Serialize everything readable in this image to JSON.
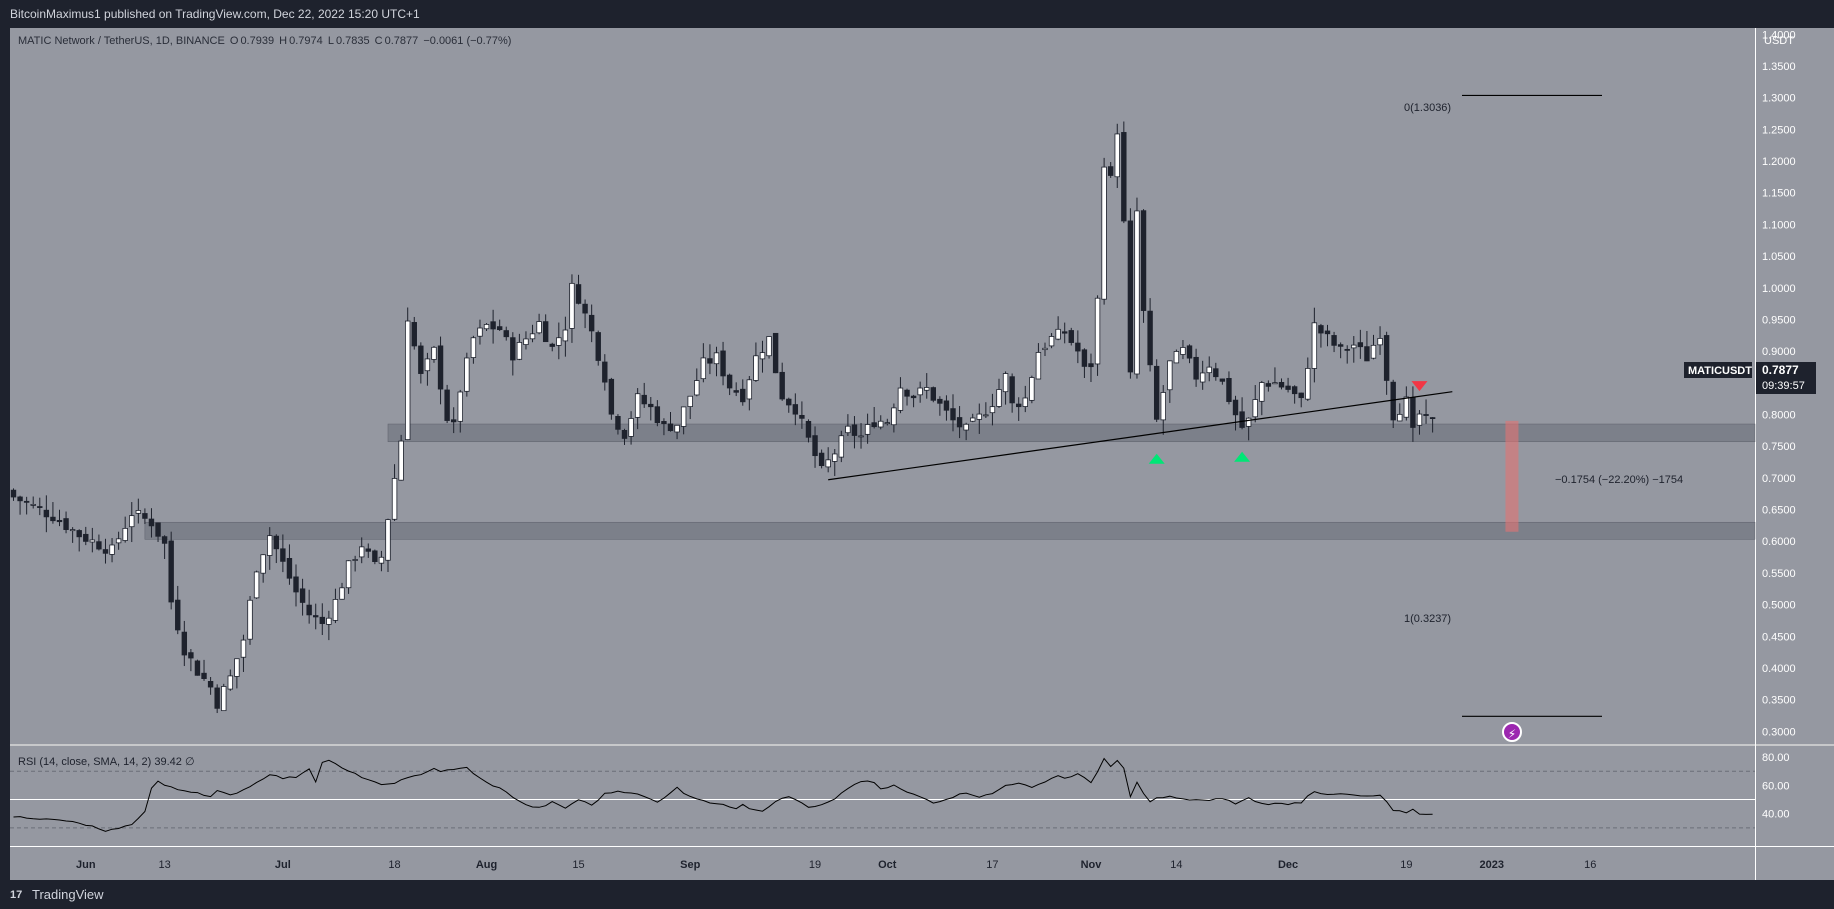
{
  "header": {
    "publisher": "BitcoinMaximus1 published on TradingView.com, Dec 22, 2022 15:20 UTC+1"
  },
  "footer": {
    "brand": "TradingView",
    "logo_glyph": "17"
  },
  "legend": {
    "symbol": "MATIC Network / TetherUS, 1D, BINANCE",
    "open_label": "O",
    "open": "0.7939",
    "high_label": "H",
    "high": "0.7974",
    "low_label": "L",
    "low": "0.7835",
    "close_label": "C",
    "close": "0.7877",
    "change": "−0.0061 (−0.77%)"
  },
  "rsi_legend": {
    "text": "RSI (14, close, SMA, 14, 2)",
    "value": "39.42",
    "glyph": "∅"
  },
  "price_badge": {
    "symbol": "MATICUSDT",
    "price": "0.7877",
    "countdown": "09:39:57"
  },
  "annotations": {
    "fib_top": "0(1.3036)",
    "fib_bottom": "1(0.3237)",
    "measure": "−0.1754 (−22.20%) −1754",
    "lightning_glyph": "⚡"
  },
  "colors": {
    "background_main": "#9598a1",
    "frame": "#1e222d",
    "bull_fill": "#ffffff",
    "bear_fill": "#1e222d",
    "support_zone": "#787b86",
    "up_arrow": "#00e676",
    "down_arrow": "#f23645",
    "measure_box": "#e57373"
  },
  "chart_data": {
    "type": "candlestick",
    "title": "MATIC Network / TetherUS, 1D, BINANCE",
    "ylabel": "USDT",
    "ylim": [
      0.28,
      1.41
    ],
    "y_ticks": [
      "1.4000",
      "1.3500",
      "1.3000",
      "1.2500",
      "1.2000",
      "1.1500",
      "1.1000",
      "1.0500",
      "1.0000",
      "0.9500",
      "0.9000",
      "0.8500",
      "0.8000",
      "0.7500",
      "0.7000",
      "0.6500",
      "0.6000",
      "0.5500",
      "0.5000",
      "0.4500",
      "0.4000",
      "0.3500",
      "0.3000"
    ],
    "x_ticks": [
      {
        "label": "Jun",
        "day": 11
      },
      {
        "label": "13",
        "day": 23
      },
      {
        "label": "Jul",
        "day": 41
      },
      {
        "label": "18",
        "day": 58
      },
      {
        "label": "Aug",
        "day": 72
      },
      {
        "label": "15",
        "day": 86
      },
      {
        "label": "Sep",
        "day": 103
      },
      {
        "label": "19",
        "day": 122
      },
      {
        "label": "Oct",
        "day": 133
      },
      {
        "label": "17",
        "day": 149
      },
      {
        "label": "Nov",
        "day": 164
      },
      {
        "label": "14",
        "day": 177
      },
      {
        "label": "Dec",
        "day": 194
      },
      {
        "label": "19",
        "day": 212
      },
      {
        "label": "2023",
        "day": 225
      },
      {
        "label": "16",
        "day": 240
      }
    ],
    "support_zones": [
      [
        0.757,
        0.785
      ],
      [
        0.603,
        0.63
      ]
    ],
    "trendline": {
      "from_day": 124,
      "from_price": 0.697,
      "to_day": 219,
      "to_price": 0.836
    },
    "fib_levels": [
      {
        "label": "0(1.3036)",
        "price": 1.3036
      },
      {
        "label": "1(0.3237)",
        "price": 0.3237
      }
    ],
    "up_markers": [
      {
        "day": 174,
        "price": 0.735
      },
      {
        "day": 187,
        "price": 0.738
      }
    ],
    "down_markers": [
      {
        "day": 214,
        "price": 0.84
      }
    ],
    "measure": {
      "day": 228,
      "from": 0.79,
      "to": 0.615
    },
    "close_anchors": [
      [
        0,
        0.67
      ],
      [
        6,
        0.64
      ],
      [
        10,
        0.61
      ],
      [
        15,
        0.585
      ],
      [
        18,
        0.645
      ],
      [
        21,
        0.63
      ],
      [
        23,
        0.595
      ],
      [
        24,
        0.505
      ],
      [
        26,
        0.43
      ],
      [
        28,
        0.395
      ],
      [
        30,
        0.37
      ],
      [
        31,
        0.345
      ],
      [
        33,
        0.385
      ],
      [
        35,
        0.445
      ],
      [
        37,
        0.56
      ],
      [
        39,
        0.61
      ],
      [
        41,
        0.565
      ],
      [
        43,
        0.52
      ],
      [
        45,
        0.485
      ],
      [
        47,
        0.47
      ],
      [
        49,
        0.505
      ],
      [
        51,
        0.56
      ],
      [
        53,
        0.595
      ],
      [
        55,
        0.56
      ],
      [
        56,
        0.575
      ],
      [
        58,
        0.7
      ],
      [
        59,
        0.76
      ],
      [
        60,
        0.955
      ],
      [
        62,
        0.86
      ],
      [
        64,
        0.9
      ],
      [
        66,
        0.795
      ],
      [
        67,
        0.78
      ],
      [
        68,
        0.84
      ],
      [
        70,
        0.92
      ],
      [
        72,
        0.94
      ],
      [
        74,
        0.935
      ],
      [
        76,
        0.895
      ],
      [
        78,
        0.92
      ],
      [
        80,
        0.945
      ],
      [
        82,
        0.905
      ],
      [
        84,
        0.94
      ],
      [
        85,
        1.0
      ],
      [
        86,
        0.985
      ],
      [
        88,
        0.93
      ],
      [
        90,
        0.86
      ],
      [
        91,
        0.8
      ],
      [
        93,
        0.77
      ],
      [
        95,
        0.825
      ],
      [
        97,
        0.81
      ],
      [
        99,
        0.78
      ],
      [
        101,
        0.785
      ],
      [
        103,
        0.83
      ],
      [
        105,
        0.88
      ],
      [
        107,
        0.89
      ],
      [
        109,
        0.845
      ],
      [
        111,
        0.83
      ],
      [
        113,
        0.89
      ],
      [
        115,
        0.92
      ],
      [
        116,
        0.87
      ],
      [
        117,
        0.83
      ],
      [
        119,
        0.81
      ],
      [
        121,
        0.76
      ],
      [
        123,
        0.71
      ],
      [
        125,
        0.74
      ],
      [
        127,
        0.775
      ],
      [
        129,
        0.765
      ],
      [
        131,
        0.79
      ],
      [
        133,
        0.79
      ],
      [
        135,
        0.845
      ],
      [
        137,
        0.83
      ],
      [
        139,
        0.84
      ],
      [
        141,
        0.815
      ],
      [
        143,
        0.79
      ],
      [
        145,
        0.775
      ],
      [
        147,
        0.795
      ],
      [
        149,
        0.82
      ],
      [
        151,
        0.86
      ],
      [
        152,
        0.815
      ],
      [
        154,
        0.825
      ],
      [
        156,
        0.9
      ],
      [
        158,
        0.92
      ],
      [
        160,
        0.93
      ],
      [
        162,
        0.9
      ],
      [
        163,
        0.87
      ],
      [
        164,
        0.88
      ],
      [
        165,
        0.98
      ],
      [
        166,
        1.2
      ],
      [
        167,
        1.17
      ],
      [
        168,
        1.25
      ],
      [
        169,
        1.1
      ],
      [
        170,
        0.86
      ],
      [
        171,
        1.12
      ],
      [
        172,
        0.96
      ],
      [
        173,
        0.87
      ],
      [
        174,
        0.79
      ],
      [
        176,
        0.88
      ],
      [
        178,
        0.9
      ],
      [
        180,
        0.86
      ],
      [
        182,
        0.88
      ],
      [
        184,
        0.85
      ],
      [
        186,
        0.8
      ],
      [
        187,
        0.78
      ],
      [
        188,
        0.79
      ],
      [
        190,
        0.85
      ],
      [
        192,
        0.85
      ],
      [
        194,
        0.84
      ],
      [
        196,
        0.82
      ],
      [
        198,
        0.94
      ],
      [
        200,
        0.92
      ],
      [
        202,
        0.9
      ],
      [
        204,
        0.91
      ],
      [
        206,
        0.89
      ],
      [
        208,
        0.93
      ],
      [
        209,
        0.86
      ],
      [
        210,
        0.8
      ],
      [
        212,
        0.82
      ],
      [
        213,
        0.77
      ],
      [
        214,
        0.8
      ],
      [
        215,
        0.79
      ],
      [
        216,
        0.788
      ]
    ],
    "rsi": {
      "ylim": [
        20,
        85
      ],
      "y_ticks": [
        "80.00",
        "60.00",
        "40.00"
      ],
      "bands": [
        30,
        50,
        70
      ],
      "anchors": [
        [
          0,
          38
        ],
        [
          3,
          37
        ],
        [
          5,
          36
        ],
        [
          8,
          35
        ],
        [
          10,
          33
        ],
        [
          12,
          31
        ],
        [
          14,
          27
        ],
        [
          16,
          30
        ],
        [
          18,
          32
        ],
        [
          20,
          42
        ],
        [
          21,
          58
        ],
        [
          22,
          63
        ],
        [
          23,
          60
        ],
        [
          25,
          57
        ],
        [
          28,
          55
        ],
        [
          30,
          52
        ],
        [
          31,
          56
        ],
        [
          33,
          53
        ],
        [
          35,
          57
        ],
        [
          37,
          62
        ],
        [
          39,
          68
        ],
        [
          41,
          65
        ],
        [
          43,
          66
        ],
        [
          45,
          72
        ],
        [
          46,
          63
        ],
        [
          47,
          76
        ],
        [
          48,
          78
        ],
        [
          50,
          72
        ],
        [
          52,
          68
        ],
        [
          54,
          64
        ],
        [
          56,
          60
        ],
        [
          58,
          62
        ],
        [
          60,
          65
        ],
        [
          62,
          68
        ],
        [
          64,
          72
        ],
        [
          65,
          70
        ],
        [
          67,
          71
        ],
        [
          69,
          73
        ],
        [
          70,
          68
        ],
        [
          72,
          62
        ],
        [
          74,
          58
        ],
        [
          76,
          52
        ],
        [
          78,
          46
        ],
        [
          80,
          44
        ],
        [
          82,
          48
        ],
        [
          84,
          44
        ],
        [
          86,
          50
        ],
        [
          88,
          46
        ],
        [
          90,
          54
        ],
        [
          92,
          56
        ],
        [
          94,
          55
        ],
        [
          96,
          52
        ],
        [
          98,
          48
        ],
        [
          100,
          55
        ],
        [
          101,
          59
        ],
        [
          102,
          54
        ],
        [
          104,
          51
        ],
        [
          106,
          48
        ],
        [
          108,
          46
        ],
        [
          110,
          44
        ],
        [
          111,
          47
        ],
        [
          112,
          44
        ],
        [
          114,
          42
        ],
        [
          116,
          49
        ],
        [
          118,
          52
        ],
        [
          120,
          48
        ],
        [
          121,
          44
        ],
        [
          123,
          46
        ],
        [
          125,
          50
        ],
        [
          127,
          58
        ],
        [
          129,
          63
        ],
        [
          131,
          62
        ],
        [
          132,
          57
        ],
        [
          134,
          60
        ],
        [
          136,
          55
        ],
        [
          138,
          52
        ],
        [
          140,
          48
        ],
        [
          141,
          49
        ],
        [
          143,
          52
        ],
        [
          145,
          55
        ],
        [
          147,
          52
        ],
        [
          149,
          54
        ],
        [
          151,
          60
        ],
        [
          153,
          62
        ],
        [
          155,
          58
        ],
        [
          157,
          63
        ],
        [
          159,
          67
        ],
        [
          160,
          65
        ],
        [
          162,
          68
        ],
        [
          164,
          62
        ],
        [
          165,
          70
        ],
        [
          166,
          79
        ],
        [
          167,
          73
        ],
        [
          168,
          77
        ],
        [
          169,
          72
        ],
        [
          170,
          52
        ],
        [
          171,
          62
        ],
        [
          172,
          54
        ],
        [
          173,
          49
        ],
        [
          174,
          51
        ],
        [
          176,
          52
        ],
        [
          178,
          50
        ],
        [
          180,
          50
        ],
        [
          182,
          49
        ],
        [
          184,
          51
        ],
        [
          186,
          47
        ],
        [
          188,
          51
        ],
        [
          190,
          47
        ],
        [
          192,
          47
        ],
        [
          194,
          47
        ],
        [
          196,
          48
        ],
        [
          197,
          53
        ],
        [
          198,
          56
        ],
        [
          200,
          53
        ],
        [
          202,
          54
        ],
        [
          204,
          53
        ],
        [
          206,
          52
        ],
        [
          208,
          53
        ],
        [
          209,
          48
        ],
        [
          210,
          42
        ],
        [
          212,
          41
        ],
        [
          213,
          43
        ],
        [
          214,
          40
        ],
        [
          215,
          40
        ],
        [
          216,
          39.42
        ]
      ]
    }
  }
}
